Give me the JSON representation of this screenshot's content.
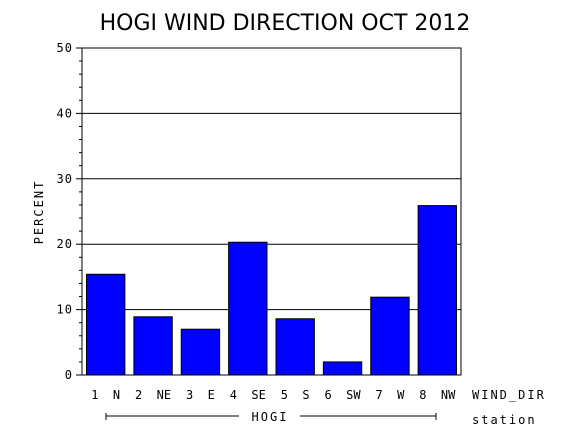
{
  "chart_data": {
    "type": "bar",
    "title": "HOGI WIND DIRECTION OCT 2012",
    "ylabel": "PERCENT",
    "xlabel": "WIND_DIR",
    "group_axis_label": "station",
    "group_label": "HOGI",
    "categories": [
      "1 N",
      "2 NE",
      "3 E",
      "4 SE",
      "5 S",
      "6 SW",
      "7 W",
      "8 NW"
    ],
    "values": [
      15.4,
      8.9,
      7.0,
      20.3,
      8.6,
      2.0,
      11.9,
      25.9
    ],
    "ylim": [
      0,
      50
    ],
    "yticks": [
      "0",
      "10",
      "20",
      "30",
      "40",
      "50"
    ],
    "grid": true,
    "bar_color": "#0000ff"
  }
}
